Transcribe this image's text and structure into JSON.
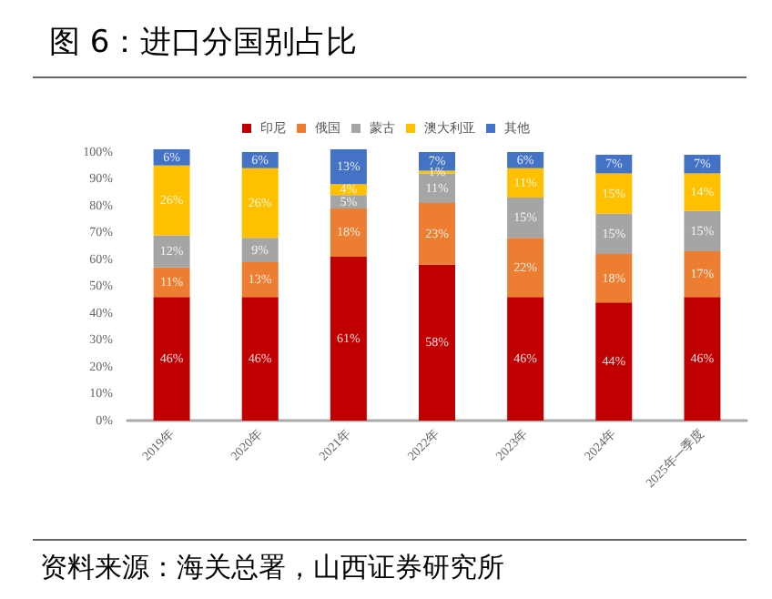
{
  "chart_data": {
    "type": "bar",
    "title": "图 6：进口分国别占比",
    "annotations": [
      "资料来源：海关总署，山西证券研究所"
    ],
    "categories": [
      "2019年",
      "2020年",
      "2021年",
      "2022年",
      "2023年",
      "2024年",
      "2025年一季度"
    ],
    "stacked": true,
    "legend": "top",
    "grid": false,
    "ylim": [
      0,
      101
    ],
    "yticks": [
      {
        "value": 0,
        "label": "0%"
      },
      {
        "value": 10,
        "label": "10%"
      },
      {
        "value": 20,
        "label": "20%"
      },
      {
        "value": 30,
        "label": "30%"
      },
      {
        "value": 40,
        "label": "40%"
      },
      {
        "value": 50,
        "label": "50%"
      },
      {
        "value": 60,
        "label": "60%"
      },
      {
        "value": 70,
        "label": "70%"
      },
      {
        "value": 80,
        "label": "80%"
      },
      {
        "value": 90,
        "label": "90%"
      },
      {
        "value": 100,
        "label": "100%"
      }
    ],
    "series": [
      {
        "name": "印尼",
        "color": "#c00000",
        "values": [
          46,
          46,
          61,
          58,
          46,
          44,
          46
        ],
        "value_labels": [
          "46%",
          "46%",
          "61%",
          "58%",
          "46%",
          "44%",
          "46%"
        ]
      },
      {
        "name": "俄国",
        "color": "#ed7d31",
        "values": [
          11,
          13,
          18,
          23,
          22,
          18,
          17
        ],
        "value_labels": [
          "11%",
          "13%",
          "18%",
          "23%",
          "22%",
          "18%",
          "17%"
        ]
      },
      {
        "name": "蒙古",
        "color": "#a5a5a5",
        "values": [
          12,
          9,
          5,
          11,
          15,
          15,
          15
        ],
        "value_labels": [
          "12%",
          "9%",
          "5%",
          "11%",
          "15%",
          "15%",
          "15%"
        ]
      },
      {
        "name": "澳大利亚",
        "color": "#ffc000",
        "values": [
          26,
          26,
          4,
          1,
          11,
          15,
          14
        ],
        "value_labels": [
          "26%",
          "26%",
          "4%",
          "1%",
          "11%",
          "15%",
          "14%"
        ]
      },
      {
        "name": "其他",
        "color": "#4472c4",
        "values": [
          6,
          6,
          13,
          7,
          6,
          7,
          7
        ],
        "value_labels": [
          "6%",
          "6%",
          "13%",
          "7%",
          "6%",
          "7%",
          "7%"
        ]
      }
    ]
  }
}
